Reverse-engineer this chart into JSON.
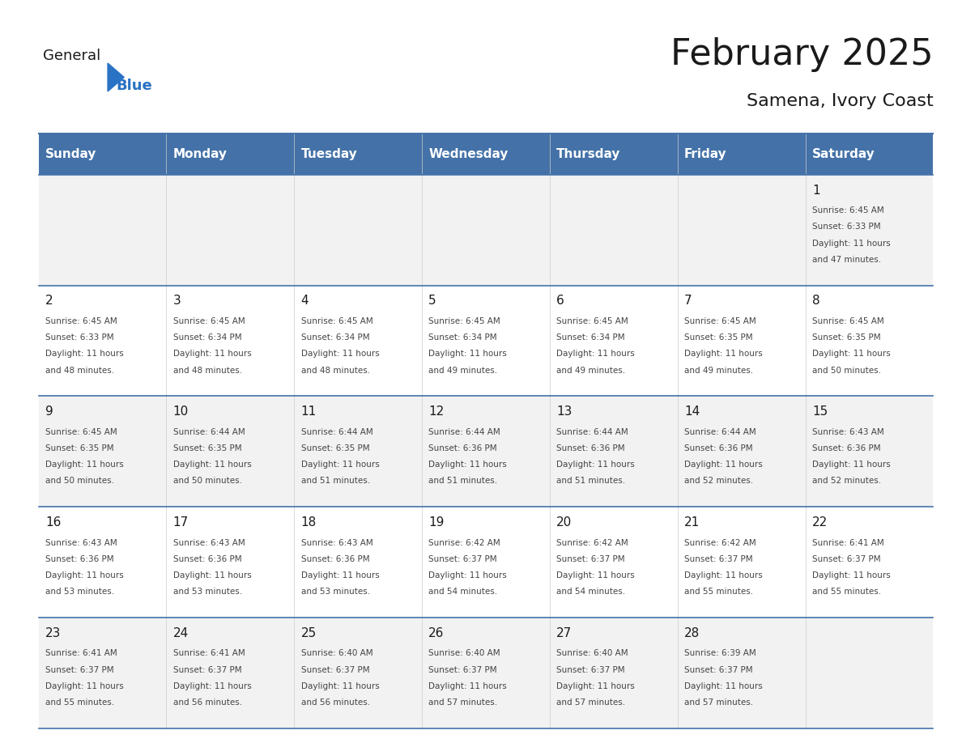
{
  "title": "February 2025",
  "subtitle": "Samena, Ivory Coast",
  "days_of_week": [
    "Sunday",
    "Monday",
    "Tuesday",
    "Wednesday",
    "Thursday",
    "Friday",
    "Saturday"
  ],
  "header_bg": "#4472a8",
  "header_text": "#ffffff",
  "row_bg_odd": "#f2f2f2",
  "row_bg_even": "#ffffff",
  "day_num_color": "#1a1a1a",
  "border_color": "#4472a8",
  "title_color": "#1a1a1a",
  "subtitle_color": "#1a1a1a",
  "logo_general_color": "#1a1a1a",
  "logo_blue_color": "#2a72c3",
  "calendar_data": [
    [
      null,
      null,
      null,
      null,
      null,
      null,
      {
        "day": 1,
        "sunrise": "6:45 AM",
        "sunset": "6:33 PM",
        "daylight": "11 hours and 47 minutes."
      }
    ],
    [
      {
        "day": 2,
        "sunrise": "6:45 AM",
        "sunset": "6:33 PM",
        "daylight": "11 hours and 48 minutes."
      },
      {
        "day": 3,
        "sunrise": "6:45 AM",
        "sunset": "6:34 PM",
        "daylight": "11 hours and 48 minutes."
      },
      {
        "day": 4,
        "sunrise": "6:45 AM",
        "sunset": "6:34 PM",
        "daylight": "11 hours and 48 minutes."
      },
      {
        "day": 5,
        "sunrise": "6:45 AM",
        "sunset": "6:34 PM",
        "daylight": "11 hours and 49 minutes."
      },
      {
        "day": 6,
        "sunrise": "6:45 AM",
        "sunset": "6:34 PM",
        "daylight": "11 hours and 49 minutes."
      },
      {
        "day": 7,
        "sunrise": "6:45 AM",
        "sunset": "6:35 PM",
        "daylight": "11 hours and 49 minutes."
      },
      {
        "day": 8,
        "sunrise": "6:45 AM",
        "sunset": "6:35 PM",
        "daylight": "11 hours and 50 minutes."
      }
    ],
    [
      {
        "day": 9,
        "sunrise": "6:45 AM",
        "sunset": "6:35 PM",
        "daylight": "11 hours and 50 minutes."
      },
      {
        "day": 10,
        "sunrise": "6:44 AM",
        "sunset": "6:35 PM",
        "daylight": "11 hours and 50 minutes."
      },
      {
        "day": 11,
        "sunrise": "6:44 AM",
        "sunset": "6:35 PM",
        "daylight": "11 hours and 51 minutes."
      },
      {
        "day": 12,
        "sunrise": "6:44 AM",
        "sunset": "6:36 PM",
        "daylight": "11 hours and 51 minutes."
      },
      {
        "day": 13,
        "sunrise": "6:44 AM",
        "sunset": "6:36 PM",
        "daylight": "11 hours and 51 minutes."
      },
      {
        "day": 14,
        "sunrise": "6:44 AM",
        "sunset": "6:36 PM",
        "daylight": "11 hours and 52 minutes."
      },
      {
        "day": 15,
        "sunrise": "6:43 AM",
        "sunset": "6:36 PM",
        "daylight": "11 hours and 52 minutes."
      }
    ],
    [
      {
        "day": 16,
        "sunrise": "6:43 AM",
        "sunset": "6:36 PM",
        "daylight": "11 hours and 53 minutes."
      },
      {
        "day": 17,
        "sunrise": "6:43 AM",
        "sunset": "6:36 PM",
        "daylight": "11 hours and 53 minutes."
      },
      {
        "day": 18,
        "sunrise": "6:43 AM",
        "sunset": "6:36 PM",
        "daylight": "11 hours and 53 minutes."
      },
      {
        "day": 19,
        "sunrise": "6:42 AM",
        "sunset": "6:37 PM",
        "daylight": "11 hours and 54 minutes."
      },
      {
        "day": 20,
        "sunrise": "6:42 AM",
        "sunset": "6:37 PM",
        "daylight": "11 hours and 54 minutes."
      },
      {
        "day": 21,
        "sunrise": "6:42 AM",
        "sunset": "6:37 PM",
        "daylight": "11 hours and 55 minutes."
      },
      {
        "day": 22,
        "sunrise": "6:41 AM",
        "sunset": "6:37 PM",
        "daylight": "11 hours and 55 minutes."
      }
    ],
    [
      {
        "day": 23,
        "sunrise": "6:41 AM",
        "sunset": "6:37 PM",
        "daylight": "11 hours and 55 minutes."
      },
      {
        "day": 24,
        "sunrise": "6:41 AM",
        "sunset": "6:37 PM",
        "daylight": "11 hours and 56 minutes."
      },
      {
        "day": 25,
        "sunrise": "6:40 AM",
        "sunset": "6:37 PM",
        "daylight": "11 hours and 56 minutes."
      },
      {
        "day": 26,
        "sunrise": "6:40 AM",
        "sunset": "6:37 PM",
        "daylight": "11 hours and 57 minutes."
      },
      {
        "day": 27,
        "sunrise": "6:40 AM",
        "sunset": "6:37 PM",
        "daylight": "11 hours and 57 minutes."
      },
      {
        "day": 28,
        "sunrise": "6:39 AM",
        "sunset": "6:37 PM",
        "daylight": "11 hours and 57 minutes."
      },
      null
    ]
  ]
}
